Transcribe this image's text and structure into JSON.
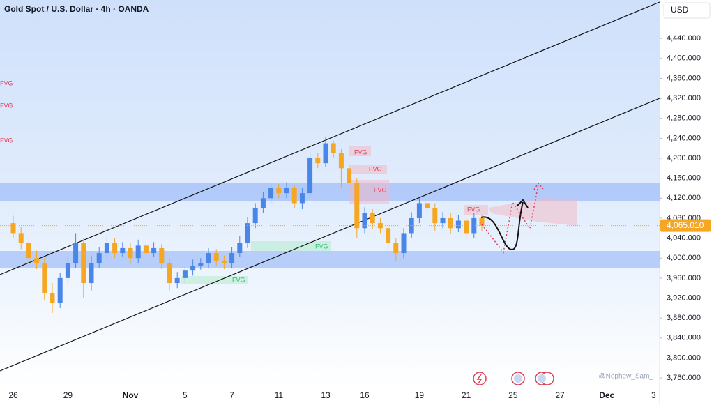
{
  "chart_data": {
    "type": "candlestick",
    "title": "Gold Spot / U.S. Dollar · 4h · OANDA",
    "currency": "USD",
    "watermark": "@Nephew_Sam_",
    "up_color": "#4a86e8",
    "down_color": "#f5a623",
    "categories": [
      "26",
      null,
      null,
      null,
      null,
      null,
      null,
      "29",
      null,
      null,
      null,
      null,
      null,
      null,
      null,
      "Nov",
      null,
      null,
      null,
      null,
      null,
      null,
      "5",
      null,
      null,
      null,
      null,
      null,
      "7",
      null,
      null,
      null,
      null,
      null,
      "11",
      null,
      null,
      null,
      null,
      null,
      "13",
      null,
      null,
      null,
      null,
      "16",
      null,
      null,
      null,
      null,
      null,
      null,
      "19",
      null,
      null,
      null,
      null,
      null,
      "21",
      null,
      null,
      null,
      null,
      null,
      "25",
      null,
      null,
      null,
      null,
      null,
      "27",
      null,
      null,
      null,
      null,
      null,
      "Dec",
      null,
      null,
      null,
      null,
      null,
      "3"
    ],
    "open": [
      4070,
      4050,
      4030,
      4000,
      3990,
      3930,
      3910,
      3960,
      3990,
      4030,
      3950,
      3990,
      4010,
      4030,
      4010,
      4020,
      4000,
      4025,
      4010,
      4020,
      3990,
      3950,
      3960,
      3975,
      3985,
      3990,
      4010,
      3995,
      3990,
      4010,
      4030,
      4070,
      4100,
      4120,
      4140,
      4130,
      4140,
      4110,
      4130,
      4200,
      4190,
      4230,
      4210,
      4180,
      4150,
      4060,
      4090,
      4070,
      4060,
      4030,
      4010,
      4050,
      4080,
      4110,
      4100,
      4070,
      4080,
      4060,
      4075,
      4050,
      4080,
      null,
      null,
      null,
      null,
      null,
      null,
      null,
      null,
      null,
      null,
      null,
      null,
      null,
      null,
      null,
      null,
      null,
      null,
      null,
      null,
      null,
      null
    ],
    "high": [
      4085,
      4062,
      4040,
      4015,
      4000,
      3950,
      3970,
      4005,
      4050,
      4040,
      4005,
      4022,
      4045,
      4040,
      4032,
      4030,
      4037,
      4033,
      4032,
      4028,
      4000,
      3972,
      3985,
      3997,
      4000,
      4020,
      4018,
      4005,
      4022,
      4045,
      4082,
      4110,
      4132,
      4150,
      4148,
      4152,
      4146,
      4140,
      4215,
      4210,
      4242,
      4235,
      4218,
      4190,
      4160,
      4102,
      4098,
      4080,
      4068,
      4040,
      4060,
      4092,
      4120,
      4118,
      4110,
      4092,
      4090,
      4087,
      4083,
      4090,
      4086,
      null,
      null,
      null,
      null,
      null,
      null,
      null,
      null,
      null,
      null,
      null,
      null,
      null,
      null,
      null,
      null,
      null,
      null,
      null,
      null,
      null,
      null
    ],
    "low": [
      4040,
      4018,
      3985,
      3978,
      3915,
      3890,
      3900,
      3948,
      3980,
      3920,
      3935,
      3980,
      3998,
      4000,
      4002,
      3988,
      3990,
      4000,
      4002,
      3978,
      3935,
      3940,
      3950,
      3965,
      3977,
      3980,
      3985,
      3978,
      3980,
      4002,
      4020,
      4060,
      4090,
      4110,
      4120,
      4120,
      4100,
      4098,
      4120,
      4180,
      4182,
      4200,
      4140,
      4138,
      4040,
      4050,
      4058,
      4050,
      4018,
      3995,
      4000,
      4040,
      4070,
      4088,
      4055,
      4060,
      4048,
      4052,
      4035,
      4040,
      4055,
      null,
      null,
      null,
      null,
      null,
      null,
      null,
      null,
      null,
      null,
      null,
      null,
      null,
      null,
      null,
      null,
      null,
      null,
      null,
      null,
      null,
      null
    ],
    "close": [
      4050,
      4030,
      4000,
      3990,
      3930,
      3910,
      3960,
      3990,
      4030,
      3950,
      3990,
      4010,
      4030,
      4010,
      4020,
      4000,
      4025,
      4010,
      4020,
      3990,
      3950,
      3960,
      3975,
      3985,
      3990,
      4010,
      3995,
      3990,
      4010,
      4030,
      4070,
      4100,
      4120,
      4140,
      4130,
      4140,
      4110,
      4130,
      4200,
      4190,
      4230,
      4210,
      4180,
      4150,
      4060,
      4090,
      4070,
      4060,
      4030,
      4010,
      4050,
      4080,
      4110,
      4100,
      4070,
      4080,
      4060,
      4075,
      4050,
      4080,
      4065,
      null,
      null,
      null,
      null,
      null,
      null,
      null,
      null,
      null,
      null,
      null,
      null,
      null,
      null,
      null,
      null,
      null,
      null,
      null,
      null,
      null,
      null
    ],
    "last_price": {
      "value": 4065.01,
      "label": "4,065.010"
    },
    "ylim": [
      3742,
      4517
    ],
    "yticks": [
      {
        "value": 3760,
        "label": "3,760.000"
      },
      {
        "value": 3800,
        "label": "3,800.000"
      },
      {
        "value": 3840,
        "label": "3,840.000"
      },
      {
        "value": 3880,
        "label": "3,880.000"
      },
      {
        "value": 3920,
        "label": "3,920.000"
      },
      {
        "value": 3960,
        "label": "3,960.000"
      },
      {
        "value": 4000,
        "label": "4,000.000"
      },
      {
        "value": 4040,
        "label": "4,040.000"
      },
      {
        "value": 4080,
        "label": "4,080.000"
      },
      {
        "value": 4120,
        "label": "4,120.000"
      },
      {
        "value": 4160,
        "label": "4,160.000"
      },
      {
        "value": 4200,
        "label": "4,200.000"
      },
      {
        "value": 4240,
        "label": "4,240.000"
      },
      {
        "value": 4280,
        "label": "4,280.000"
      },
      {
        "value": 4320,
        "label": "4,320.000"
      },
      {
        "value": 4360,
        "label": "4,360.000"
      },
      {
        "value": 4400,
        "label": "4,400.000"
      },
      {
        "value": 4440,
        "label": "4,440.000"
      }
    ],
    "annotations": [
      {
        "text": "FVG",
        "color": "#e0405a"
      },
      {
        "text": "FVG",
        "color": "#e0405a"
      },
      {
        "text": "FVG",
        "color": "#e0405a"
      },
      {
        "text": "FVG",
        "color": "#e0405a"
      },
      {
        "text": "FVG",
        "color": "#e0405a"
      },
      {
        "text": "FVG",
        "color": "#e0405a"
      },
      {
        "text": "FVG",
        "color": "#e0405a"
      },
      {
        "text": "FVG",
        "color": "#2fbf71"
      },
      {
        "text": "FVG",
        "color": "#2fbf71"
      }
    ]
  }
}
